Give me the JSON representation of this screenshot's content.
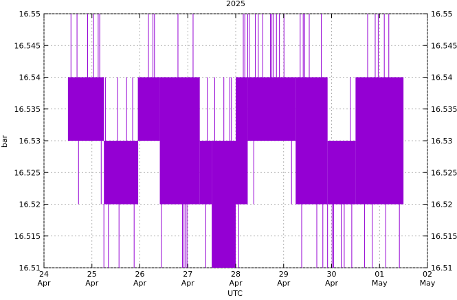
{
  "chart_data": {
    "type": "line",
    "title": "2025",
    "xlabel": "UTC",
    "ylabel": "bar",
    "color": "#9400d3",
    "grid": true,
    "ylim": [
      16.51,
      16.55
    ],
    "xlim": [
      "2025-04-24",
      "2025-05-02"
    ],
    "x_ticks": [
      {
        "day": "24",
        "month": "Apr"
      },
      {
        "day": "25",
        "month": "Apr"
      },
      {
        "day": "26",
        "month": "Apr"
      },
      {
        "day": "27",
        "month": "Apr"
      },
      {
        "day": "28",
        "month": "Apr"
      },
      {
        "day": "29",
        "month": "Apr"
      },
      {
        "day": "30",
        "month": "Apr"
      },
      {
        "day": "01",
        "month": "May"
      },
      {
        "day": "02",
        "month": "May"
      }
    ],
    "y_ticks": [
      "16.51",
      "16.515",
      "16.52",
      "16.525",
      "16.53",
      "16.535",
      "16.54",
      "16.545",
      "16.55"
    ],
    "series": [
      {
        "description": "Pressure readings oscillating between quantized levels",
        "segments": [
          {
            "x_start": "2025-04-24T12:00",
            "x_end": "2025-04-25T06:00",
            "low": 16.53,
            "high": 16.54
          },
          {
            "x_start": "2025-04-25T06:00",
            "x_end": "2025-04-25T23:00",
            "low": 16.52,
            "high": 16.53
          },
          {
            "x_start": "2025-04-25T23:00",
            "x_end": "2025-04-26T10:00",
            "low": 16.53,
            "high": 16.54
          },
          {
            "x_start": "2025-04-26T10:00",
            "x_end": "2025-04-27T06:00",
            "low": 16.52,
            "high": 16.54
          },
          {
            "x_start": "2025-04-27T06:00",
            "x_end": "2025-04-27T12:00",
            "low": 16.52,
            "high": 16.53
          },
          {
            "x_start": "2025-04-27T12:00",
            "x_end": "2025-04-28T00:00",
            "low": 16.51,
            "high": 16.53
          },
          {
            "x_start": "2025-04-28T00:00",
            "x_end": "2025-04-28T06:00",
            "low": 16.52,
            "high": 16.54
          },
          {
            "x_start": "2025-04-28T06:00",
            "x_end": "2025-04-29T06:00",
            "low": 16.53,
            "high": 16.54
          },
          {
            "x_start": "2025-04-29T06:00",
            "x_end": "2025-04-29T22:00",
            "low": 16.52,
            "high": 16.54
          },
          {
            "x_start": "2025-04-29T22:00",
            "x_end": "2025-04-30T12:00",
            "low": 16.52,
            "high": 16.53
          },
          {
            "x_start": "2025-04-30T12:00",
            "x_end": "2025-05-01T12:00",
            "low": 16.52,
            "high": 16.54
          }
        ]
      }
    ]
  }
}
